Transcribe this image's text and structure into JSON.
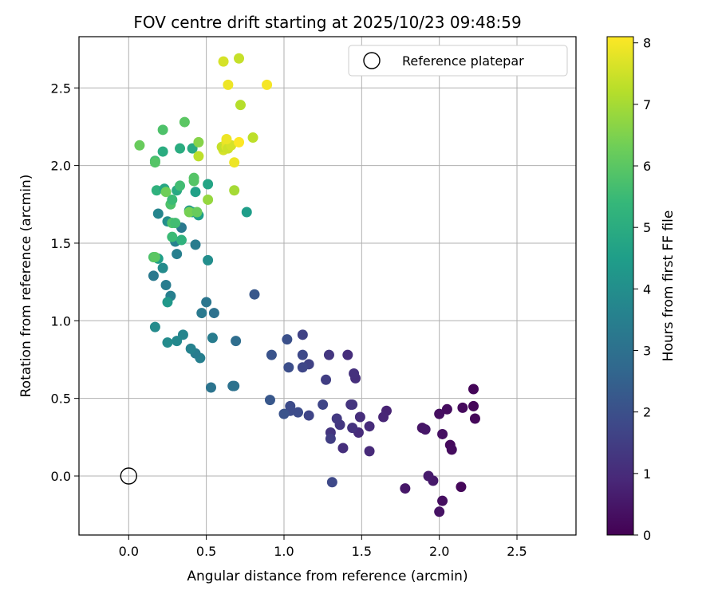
{
  "chart_data": {
    "type": "scatter",
    "title": "FOV centre drift starting at 2025/10/23 09:48:59",
    "xlabel": "Angular distance from reference (arcmin)",
    "ylabel": "Rotation from reference (arcmin)",
    "xlim": [
      -0.32,
      2.88
    ],
    "ylim": [
      -0.38,
      2.83
    ],
    "xticks": [
      0.0,
      0.5,
      1.0,
      1.5,
      2.0,
      2.5
    ],
    "xtick_labels": [
      "0.0",
      "0.5",
      "1.0",
      "1.5",
      "2.0",
      "2.5"
    ],
    "yticks": [
      0.0,
      0.5,
      1.0,
      1.5,
      2.0,
      2.5
    ],
    "ytick_labels": [
      "0.0",
      "0.5",
      "1.0",
      "1.5",
      "2.0",
      "2.5"
    ],
    "grid": true,
    "legend": {
      "position": "top-right",
      "label": "Reference platepar"
    },
    "reference_point": {
      "x": 0.0,
      "y": 0.0
    },
    "colorbar": {
      "label": "Hours from first FF file",
      "range": [
        0,
        8.1
      ],
      "ticks": [
        0,
        1,
        2,
        3,
        4,
        5,
        6,
        7,
        8
      ],
      "tick_labels": [
        "0",
        "1",
        "2",
        "3",
        "4",
        "5",
        "6",
        "7",
        "8"
      ],
      "colormap": "viridis",
      "stops": [
        "#440154",
        "#482878",
        "#3e4989",
        "#31688e",
        "#26828e",
        "#1f9e89",
        "#35b779",
        "#6ece58",
        "#b5de2b",
        "#fde725"
      ]
    },
    "points": [
      {
        "x": 2.22,
        "y": 0.56,
        "h": 0.1
      },
      {
        "x": 2.22,
        "y": 0.45,
        "h": 0.1
      },
      {
        "x": 2.23,
        "y": 0.37,
        "h": 0.15
      },
      {
        "x": 2.15,
        "y": 0.44,
        "h": 0.2
      },
      {
        "x": 2.05,
        "y": 0.43,
        "h": 0.25
      },
      {
        "x": 2.0,
        "y": 0.4,
        "h": 0.3
      },
      {
        "x": 2.07,
        "y": 0.2,
        "h": 0.2
      },
      {
        "x": 2.08,
        "y": 0.17,
        "h": 0.25
      },
      {
        "x": 2.02,
        "y": 0.27,
        "h": 0.35
      },
      {
        "x": 2.14,
        "y": -0.07,
        "h": 0.15
      },
      {
        "x": 2.02,
        "y": -0.16,
        "h": 0.3
      },
      {
        "x": 2.0,
        "y": -0.23,
        "h": 0.4
      },
      {
        "x": 1.96,
        "y": -0.03,
        "h": 0.55
      },
      {
        "x": 1.93,
        "y": 0.0,
        "h": 0.6
      },
      {
        "x": 1.78,
        "y": -0.08,
        "h": 0.5
      },
      {
        "x": 1.89,
        "y": 0.31,
        "h": 0.45
      },
      {
        "x": 1.91,
        "y": 0.3,
        "h": 0.5
      },
      {
        "x": 1.66,
        "y": 0.42,
        "h": 0.8
      },
      {
        "x": 1.64,
        "y": 0.38,
        "h": 0.85
      },
      {
        "x": 1.55,
        "y": 0.16,
        "h": 0.95
      },
      {
        "x": 1.55,
        "y": 0.32,
        "h": 1.0
      },
      {
        "x": 1.49,
        "y": 0.38,
        "h": 1.05
      },
      {
        "x": 1.48,
        "y": 0.28,
        "h": 1.0
      },
      {
        "x": 1.46,
        "y": 0.63,
        "h": 1.1
      },
      {
        "x": 1.45,
        "y": 0.66,
        "h": 1.15
      },
      {
        "x": 1.41,
        "y": 0.78,
        "h": 1.05
      },
      {
        "x": 1.43,
        "y": 0.46,
        "h": 1.2
      },
      {
        "x": 1.44,
        "y": 0.46,
        "h": 1.25
      },
      {
        "x": 1.44,
        "y": 0.31,
        "h": 1.2
      },
      {
        "x": 1.38,
        "y": 0.18,
        "h": 1.1
      },
      {
        "x": 1.36,
        "y": 0.33,
        "h": 1.3
      },
      {
        "x": 1.34,
        "y": 0.37,
        "h": 1.35
      },
      {
        "x": 1.3,
        "y": 0.28,
        "h": 1.25
      },
      {
        "x": 1.3,
        "y": 0.24,
        "h": 1.5
      },
      {
        "x": 1.29,
        "y": 0.78,
        "h": 1.3
      },
      {
        "x": 1.27,
        "y": 0.62,
        "h": 1.5
      },
      {
        "x": 1.25,
        "y": 0.46,
        "h": 1.7
      },
      {
        "x": 1.31,
        "y": -0.04,
        "h": 1.8
      },
      {
        "x": 1.16,
        "y": 0.72,
        "h": 1.6
      },
      {
        "x": 1.16,
        "y": 0.39,
        "h": 1.7
      },
      {
        "x": 1.12,
        "y": 0.91,
        "h": 1.6
      },
      {
        "x": 1.12,
        "y": 0.78,
        "h": 1.8
      },
      {
        "x": 1.12,
        "y": 0.7,
        "h": 1.75
      },
      {
        "x": 1.09,
        "y": 0.41,
        "h": 1.9
      },
      {
        "x": 1.04,
        "y": 0.45,
        "h": 1.85
      },
      {
        "x": 1.04,
        "y": 0.42,
        "h": 1.9
      },
      {
        "x": 1.03,
        "y": 0.7,
        "h": 1.95
      },
      {
        "x": 1.02,
        "y": 0.88,
        "h": 2.0
      },
      {
        "x": 1.0,
        "y": 0.4,
        "h": 2.1
      },
      {
        "x": 0.92,
        "y": 0.78,
        "h": 2.1
      },
      {
        "x": 0.91,
        "y": 0.49,
        "h": 2.2
      },
      {
        "x": 0.81,
        "y": 1.17,
        "h": 2.2
      },
      {
        "x": 0.69,
        "y": 0.87,
        "h": 2.9
      },
      {
        "x": 0.67,
        "y": 0.58,
        "h": 3.0
      },
      {
        "x": 0.68,
        "y": 0.58,
        "h": 3.05
      },
      {
        "x": 0.55,
        "y": 1.05,
        "h": 3.0
      },
      {
        "x": 0.54,
        "y": 0.89,
        "h": 3.4
      },
      {
        "x": 0.53,
        "y": 0.57,
        "h": 3.1
      },
      {
        "x": 0.5,
        "y": 1.12,
        "h": 3.2
      },
      {
        "x": 0.47,
        "y": 1.05,
        "h": 3.3
      },
      {
        "x": 0.46,
        "y": 0.76,
        "h": 3.5
      },
      {
        "x": 0.43,
        "y": 0.79,
        "h": 3.4
      },
      {
        "x": 0.4,
        "y": 0.82,
        "h": 3.6
      },
      {
        "x": 0.35,
        "y": 0.91,
        "h": 3.7
      },
      {
        "x": 0.31,
        "y": 0.87,
        "h": 3.8
      },
      {
        "x": 0.25,
        "y": 0.86,
        "h": 3.9
      },
      {
        "x": 0.17,
        "y": 0.96,
        "h": 3.9
      },
      {
        "x": 0.16,
        "y": 1.29,
        "h": 3.3
      },
      {
        "x": 0.24,
        "y": 1.23,
        "h": 3.4
      },
      {
        "x": 0.27,
        "y": 1.16,
        "h": 3.5
      },
      {
        "x": 0.25,
        "y": 1.12,
        "h": 4.3
      },
      {
        "x": 0.22,
        "y": 1.34,
        "h": 3.9
      },
      {
        "x": 0.19,
        "y": 1.4,
        "h": 4.5
      },
      {
        "x": 0.16,
        "y": 1.41,
        "h": 5.8
      },
      {
        "x": 0.17,
        "y": 1.41,
        "h": 6.0
      },
      {
        "x": 0.31,
        "y": 1.43,
        "h": 3.5
      },
      {
        "x": 0.3,
        "y": 1.51,
        "h": 3.6
      },
      {
        "x": 0.43,
        "y": 1.49,
        "h": 3.4
      },
      {
        "x": 0.51,
        "y": 1.39,
        "h": 4.0
      },
      {
        "x": 0.34,
        "y": 1.52,
        "h": 5.2
      },
      {
        "x": 0.28,
        "y": 1.54,
        "h": 5.5
      },
      {
        "x": 0.34,
        "y": 1.6,
        "h": 3.3
      },
      {
        "x": 0.25,
        "y": 1.64,
        "h": 4.0
      },
      {
        "x": 0.28,
        "y": 1.63,
        "h": 5.8
      },
      {
        "x": 0.3,
        "y": 1.63,
        "h": 5.6
      },
      {
        "x": 0.19,
        "y": 1.69,
        "h": 3.7
      },
      {
        "x": 0.45,
        "y": 1.68,
        "h": 4.5
      },
      {
        "x": 0.39,
        "y": 1.71,
        "h": 4.3
      },
      {
        "x": 0.41,
        "y": 1.7,
        "h": 4.6
      },
      {
        "x": 0.39,
        "y": 1.7,
        "h": 6.4
      },
      {
        "x": 0.44,
        "y": 1.7,
        "h": 6.2
      },
      {
        "x": 0.27,
        "y": 1.75,
        "h": 5.8
      },
      {
        "x": 0.28,
        "y": 1.78,
        "h": 5.5
      },
      {
        "x": 0.51,
        "y": 1.78,
        "h": 6.8
      },
      {
        "x": 0.76,
        "y": 1.7,
        "h": 4.5
      },
      {
        "x": 0.18,
        "y": 1.84,
        "h": 5.2
      },
      {
        "x": 0.23,
        "y": 1.85,
        "h": 4.8
      },
      {
        "x": 0.24,
        "y": 1.83,
        "h": 6.3
      },
      {
        "x": 0.31,
        "y": 1.84,
        "h": 4.9
      },
      {
        "x": 0.33,
        "y": 1.87,
        "h": 5.6
      },
      {
        "x": 0.43,
        "y": 1.83,
        "h": 4.6
      },
      {
        "x": 0.51,
        "y": 1.88,
        "h": 4.7
      },
      {
        "x": 0.42,
        "y": 1.9,
        "h": 5.9
      },
      {
        "x": 0.42,
        "y": 1.92,
        "h": 5.9
      },
      {
        "x": 0.68,
        "y": 1.84,
        "h": 7.0
      },
      {
        "x": 0.17,
        "y": 2.03,
        "h": 5.6
      },
      {
        "x": 0.17,
        "y": 2.02,
        "h": 5.9
      },
      {
        "x": 0.22,
        "y": 2.09,
        "h": 5.0
      },
      {
        "x": 0.33,
        "y": 2.11,
        "h": 5.0
      },
      {
        "x": 0.41,
        "y": 2.11,
        "h": 4.9
      },
      {
        "x": 0.07,
        "y": 2.13,
        "h": 6.2
      },
      {
        "x": 0.45,
        "y": 2.06,
        "h": 7.3
      },
      {
        "x": 0.45,
        "y": 2.15,
        "h": 6.6
      },
      {
        "x": 0.22,
        "y": 2.23,
        "h": 5.8
      },
      {
        "x": 0.36,
        "y": 2.28,
        "h": 6.0
      },
      {
        "x": 0.61,
        "y": 2.1,
        "h": 7.6
      },
      {
        "x": 0.6,
        "y": 2.12,
        "h": 7.4
      },
      {
        "x": 0.63,
        "y": 2.12,
        "h": 7.7
      },
      {
        "x": 0.63,
        "y": 2.15,
        "h": 7.8
      },
      {
        "x": 0.64,
        "y": 2.11,
        "h": 7.5
      },
      {
        "x": 0.66,
        "y": 2.13,
        "h": 7.6
      },
      {
        "x": 0.63,
        "y": 2.17,
        "h": 7.9
      },
      {
        "x": 0.68,
        "y": 2.02,
        "h": 7.9
      },
      {
        "x": 0.71,
        "y": 2.15,
        "h": 8.1
      },
      {
        "x": 0.8,
        "y": 2.18,
        "h": 7.3
      },
      {
        "x": 0.72,
        "y": 2.39,
        "h": 7.2
      },
      {
        "x": 0.64,
        "y": 2.52,
        "h": 7.9
      },
      {
        "x": 0.89,
        "y": 2.52,
        "h": 8.0
      },
      {
        "x": 0.61,
        "y": 2.67,
        "h": 7.6
      },
      {
        "x": 0.71,
        "y": 2.69,
        "h": 7.4
      }
    ]
  }
}
